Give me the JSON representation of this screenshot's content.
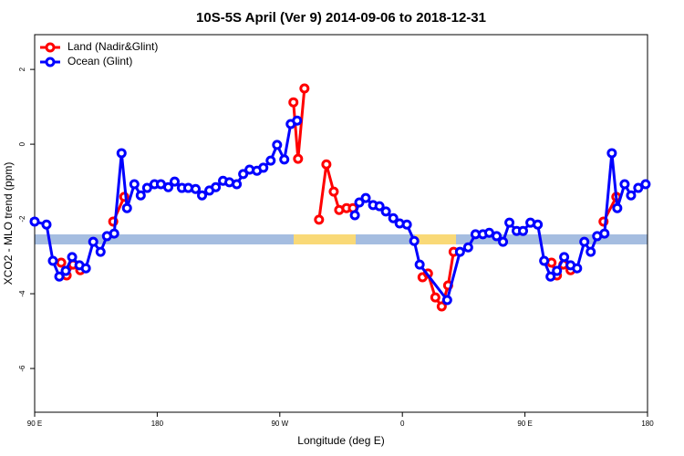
{
  "chart_data": {
    "type": "line",
    "title": "10S-5S April (Ver 9)   2014-09-06 to 2018-12-31",
    "x_label": "Longitude (deg E)",
    "y_label": "XCO2 - MLO trend (ppm)",
    "xlim": [
      90,
      540
    ],
    "ylim": [
      -7.17,
      2.93
    ],
    "xticks": [
      {
        "value": 90,
        "label": "90 E"
      },
      180,
      {
        "value": 270,
        "label": "90 W"
      },
      {
        "value": 360,
        "label": "0"
      },
      {
        "value": 450,
        "label": "90 E"
      },
      {
        "value": 540,
        "label": "180"
      }
    ],
    "yticks": [
      -6,
      -4,
      -2,
      0,
      2
    ],
    "legend": "top-left",
    "series": [
      {
        "name": "Land (Nadir&Glint)",
        "color": "#ff0000",
        "x": [
          109.5,
          113.5,
          118.2,
          123.5,
          135,
          147.7,
          155.8,
          220,
          280.0,
          283.4,
          288.1,
          293,
          298.8,
          304.2,
          309.6,
          313.6,
          319.0,
          323.7,
          350,
          374.8,
          378.8,
          384.2,
          388.9,
          393.6,
          397.6,
          430,
          469.5,
          473.5,
          478.2,
          483.5,
          495,
          507.7,
          517.1
        ],
        "values": [
          -3.17,
          -3.51,
          -3.22,
          -3.37,
          null,
          -2.07,
          -1.41,
          null,
          1.12,
          -0.39,
          1.49,
          null,
          -2.02,
          -0.54,
          -1.27,
          -1.76,
          -1.71,
          -1.71,
          null,
          -3.56,
          -3.46,
          -4.1,
          -4.34,
          -3.78,
          -2.88,
          null,
          -3.17,
          -3.51,
          -3.22,
          -3.37,
          null,
          -2.07,
          -1.41
        ]
      },
      {
        "name": "Ocean (Glint)",
        "color": "#0000ff",
        "x": [
          90,
          98.7,
          103.4,
          108.1,
          112.8,
          117.5,
          122.9,
          127.6,
          133.0,
          138.4,
          143.1,
          148.4,
          153.8,
          157.8,
          163.2,
          167.9,
          172.6,
          178.0,
          182.7,
          188.1,
          192.8,
          198.1,
          202.8,
          208.2,
          212.9,
          218.3,
          223.0,
          228.3,
          233.0,
          238.4,
          243.1,
          247.8,
          253.2,
          257.9,
          263.3,
          268.0,
          273.3,
          278.0,
          282.7,
          303,
          325.1,
          328.4,
          333.1,
          338.5,
          343.2,
          347.9,
          353.3,
          358.0,
          363.3,
          368.7,
          372.7,
          392.9,
          402.3,
          408.3,
          413.7,
          419.1,
          423.8,
          429.2,
          433.9,
          438.6,
          443.9,
          448.6,
          454.0,
          459.4,
          464.1,
          468.8,
          473.5,
          478.8,
          483.5,
          488.3,
          493.6,
          498.3,
          503.0,
          508.4,
          513.8,
          517.8,
          523.2,
          527.9,
          533.2,
          538.6
        ],
        "values": [
          -2.07,
          -2.15,
          -3.12,
          -3.54,
          -3.39,
          -3.02,
          -3.24,
          -3.32,
          -2.61,
          -2.88,
          -2.46,
          -2.39,
          -0.24,
          -1.71,
          -1.07,
          -1.37,
          -1.17,
          -1.07,
          -1.07,
          -1.15,
          -1.0,
          -1.17,
          -1.17,
          -1.2,
          -1.37,
          -1.24,
          -1.15,
          -0.98,
          -1.02,
          -1.07,
          -0.8,
          -0.68,
          -0.71,
          -0.63,
          -0.44,
          -0.02,
          -0.41,
          0.54,
          0.63,
          null,
          -1.9,
          -1.56,
          -1.44,
          -1.63,
          -1.66,
          -1.8,
          -1.98,
          -2.12,
          -2.15,
          -2.59,
          -3.22,
          -4.17,
          -2.88,
          -2.76,
          -2.41,
          -2.41,
          -2.37,
          -2.46,
          -2.61,
          -2.1,
          -2.32,
          -2.32,
          -2.1,
          -2.15,
          -3.12,
          -3.54,
          -3.39,
          -3.02,
          -3.24,
          -3.32,
          -2.61,
          -2.88,
          -2.46,
          -2.39,
          -0.24,
          -1.71,
          -1.07,
          -1.37,
          -1.17,
          -1.07
        ]
      }
    ]
  }
}
